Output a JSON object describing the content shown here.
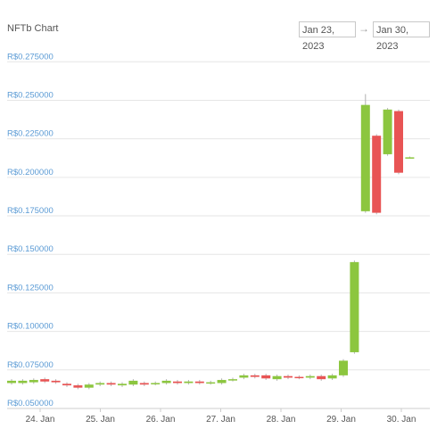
{
  "header": {
    "title": "NFTb Chart",
    "range_from": "Jan 23, 2023",
    "range_arrow": "→",
    "range_to": "Jan 30, 2023"
  },
  "chart_data": {
    "type": "candlestick",
    "title": "NFTb Chart",
    "y_tick_labels": [
      "R$0.275000",
      "R$0.250000",
      "R$0.225000",
      "R$0.200000",
      "R$0.175000",
      "R$0.150000",
      "R$0.125000",
      "R$0.100000",
      "R$0.075000",
      "R$0.050000"
    ],
    "y_ticks": [
      0.275,
      0.25,
      0.225,
      0.2,
      0.175,
      0.15,
      0.125,
      0.1,
      0.075,
      0.05
    ],
    "ylim": [
      0.05,
      0.285
    ],
    "x_tick_labels": [
      "24. Jan",
      "25. Jan",
      "26. Jan",
      "27. Jan",
      "28. Jan",
      "29. Jan",
      "30. Jan"
    ],
    "colors": {
      "up": "#8cc63f",
      "down": "#e85454",
      "grid": "#e6e6e6",
      "tick": "#5b9bd5"
    },
    "candles": [
      {
        "open": 0.0665,
        "close": 0.068,
        "high": 0.069,
        "low": 0.0655
      },
      {
        "open": 0.0665,
        "close": 0.068,
        "high": 0.069,
        "low": 0.0655
      },
      {
        "open": 0.067,
        "close": 0.0685,
        "high": 0.0695,
        "low": 0.066
      },
      {
        "open": 0.069,
        "close": 0.0675,
        "high": 0.07,
        "low": 0.0665
      },
      {
        "open": 0.068,
        "close": 0.067,
        "high": 0.069,
        "low": 0.066
      },
      {
        "open": 0.066,
        "close": 0.065,
        "high": 0.067,
        "low": 0.064
      },
      {
        "open": 0.065,
        "close": 0.0635,
        "high": 0.066,
        "low": 0.0625
      },
      {
        "open": 0.0635,
        "close": 0.0655,
        "high": 0.0665,
        "low": 0.0625
      },
      {
        "open": 0.0655,
        "close": 0.0665,
        "high": 0.0675,
        "low": 0.0645
      },
      {
        "open": 0.0665,
        "close": 0.0655,
        "high": 0.0675,
        "low": 0.0645
      },
      {
        "open": 0.065,
        "close": 0.066,
        "high": 0.067,
        "low": 0.064
      },
      {
        "open": 0.0655,
        "close": 0.068,
        "high": 0.069,
        "low": 0.0645
      },
      {
        "open": 0.0665,
        "close": 0.0655,
        "high": 0.0675,
        "low": 0.0645
      },
      {
        "open": 0.066,
        "close": 0.0665,
        "high": 0.0675,
        "low": 0.065
      },
      {
        "open": 0.0665,
        "close": 0.068,
        "high": 0.069,
        "low": 0.0655
      },
      {
        "open": 0.0675,
        "close": 0.0665,
        "high": 0.0685,
        "low": 0.0655
      },
      {
        "open": 0.0665,
        "close": 0.0675,
        "high": 0.0685,
        "low": 0.0655
      },
      {
        "open": 0.0675,
        "close": 0.0665,
        "high": 0.0685,
        "low": 0.0655
      },
      {
        "open": 0.0665,
        "close": 0.067,
        "high": 0.068,
        "low": 0.0655
      },
      {
        "open": 0.0665,
        "close": 0.0685,
        "high": 0.0695,
        "low": 0.0655
      },
      {
        "open": 0.0685,
        "close": 0.069,
        "high": 0.07,
        "low": 0.0675
      },
      {
        "open": 0.07,
        "close": 0.0715,
        "high": 0.0725,
        "low": 0.069
      },
      {
        "open": 0.0715,
        "close": 0.0705,
        "high": 0.0725,
        "low": 0.0695
      },
      {
        "open": 0.0715,
        "close": 0.0695,
        "high": 0.0725,
        "low": 0.0685
      },
      {
        "open": 0.069,
        "close": 0.071,
        "high": 0.072,
        "low": 0.068
      },
      {
        "open": 0.071,
        "close": 0.07,
        "high": 0.072,
        "low": 0.069
      },
      {
        "open": 0.0705,
        "close": 0.07,
        "high": 0.0715,
        "low": 0.069
      },
      {
        "open": 0.07,
        "close": 0.071,
        "high": 0.072,
        "low": 0.069
      },
      {
        "open": 0.071,
        "close": 0.069,
        "high": 0.072,
        "low": 0.068
      },
      {
        "open": 0.0695,
        "close": 0.0715,
        "high": 0.0725,
        "low": 0.0685
      },
      {
        "open": 0.0715,
        "close": 0.081,
        "high": 0.082,
        "low": 0.0705
      },
      {
        "open": 0.0865,
        "close": 0.145,
        "high": 0.146,
        "low": 0.0855
      },
      {
        "open": 0.178,
        "close": 0.247,
        "high": 0.254,
        "low": 0.177
      },
      {
        "open": 0.227,
        "close": 0.177,
        "high": 0.228,
        "low": 0.176
      },
      {
        "open": 0.215,
        "close": 0.244,
        "high": 0.245,
        "low": 0.214
      },
      {
        "open": 0.243,
        "close": 0.203,
        "high": 0.244,
        "low": 0.202
      },
      {
        "open": 0.213,
        "close": 0.213,
        "high": 0.2135,
        "low": 0.2125
      }
    ]
  }
}
